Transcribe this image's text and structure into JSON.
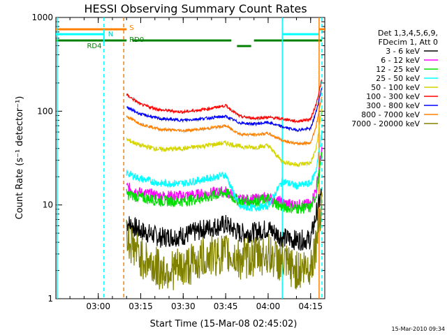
{
  "chart_data": {
    "type": "line",
    "title": "HESSI Observing Summary Count Rates",
    "xlabel": "Start Time (15-Mar-08 02:45:02)",
    "ylabel": "Count Rate (s⁻¹ detector⁻¹)",
    "y_scale": "log",
    "ylim": [
      1,
      1000
    ],
    "xlim": [
      "02:45:02",
      "04:20:00"
    ],
    "x_ticks": [
      "03:00",
      "03:15",
      "03:30",
      "03:45",
      "04:00",
      "04:15"
    ],
    "y_ticks": [
      "1",
      "10",
      "100",
      "1000"
    ],
    "legend": {
      "position": "right",
      "header": [
        "Det 1,3,4,5,6,9,",
        "FDecim 1, Att 0"
      ],
      "entries": [
        {
          "label": "3 - 6 keV",
          "color": "#000000"
        },
        {
          "label": "6 - 12 keV",
          "color": "#ff00ff"
        },
        {
          "label": "12 - 25 keV",
          "color": "#00e000"
        },
        {
          "label": "25 - 50 keV",
          "color": "#00ffff"
        },
        {
          "label": "50 - 100 keV",
          "color": "#d4d400"
        },
        {
          "label": "100 - 300 keV",
          "color": "#ff0000"
        },
        {
          "label": "300 - 800 keV",
          "color": "#0000ff"
        },
        {
          "label": "800 - 7000 keV",
          "color": "#ff8000"
        },
        {
          "label": "7000 - 20000 keV",
          "color": "#808000"
        }
      ]
    },
    "annotations": {
      "saa_label": "S",
      "night_label": "N",
      "rd4_label": "RD4",
      "rd0_label": "RD0"
    },
    "series": [
      {
        "name": "3 - 6 keV",
        "color": "#000000",
        "x": [
          "03:10",
          "03:15",
          "03:22",
          "03:30",
          "03:38",
          "03:45",
          "03:50",
          "03:55",
          "04:00",
          "04:05",
          "04:10",
          "04:15",
          "04:17",
          "04:19"
        ],
        "y": [
          6.5,
          5.3,
          4.5,
          4.7,
          5.6,
          6.2,
          5.0,
          5.1,
          5.6,
          4.5,
          4.2,
          4.3,
          8,
          14
        ]
      },
      {
        "name": "6 - 12 keV",
        "color": "#ff00ff",
        "x": [
          "03:10",
          "03:15",
          "03:22",
          "03:30",
          "03:38",
          "03:45",
          "03:50",
          "03:55",
          "04:00",
          "04:05",
          "04:10",
          "04:15",
          "04:17",
          "04:19"
        ],
        "y": [
          15.5,
          13.5,
          12.5,
          12.5,
          13.2,
          14,
          11.3,
          11.5,
          12,
          10.5,
          10,
          10.2,
          15,
          40
        ]
      },
      {
        "name": "12 - 25 keV",
        "color": "#00e000",
        "x": [
          "03:10",
          "03:15",
          "03:22",
          "03:30",
          "03:38",
          "03:45",
          "03:50",
          "03:55",
          "04:00",
          "04:05",
          "04:10",
          "04:15",
          "04:17",
          "04:19"
        ],
        "y": [
          13,
          12,
          11,
          11,
          12,
          13.5,
          10.8,
          11,
          11.5,
          9.5,
          9.2,
          9.3,
          13,
          35
        ]
      },
      {
        "name": "25 - 50 keV",
        "color": "#00ffff",
        "x": [
          "03:10",
          "03:15",
          "03:22",
          "03:30",
          "03:38",
          "03:45",
          "03:50",
          "03:55",
          "04:00",
          "04:05",
          "04:10",
          "04:15",
          "04:17",
          "04:19"
        ],
        "y": [
          22,
          19,
          17,
          17,
          19,
          21,
          9.5,
          9.3,
          9.8,
          18,
          16,
          17,
          24,
          60
        ]
      },
      {
        "name": "50 - 100 keV",
        "color": "#d4d400",
        "x": [
          "03:10",
          "03:15",
          "03:22",
          "03:30",
          "03:38",
          "03:45",
          "03:50",
          "03:55",
          "04:00",
          "04:05",
          "04:10",
          "04:15",
          "04:17",
          "04:19"
        ],
        "y": [
          50,
          43,
          39,
          40,
          43,
          46,
          42,
          41,
          43,
          29,
          27,
          28,
          40,
          110
        ]
      },
      {
        "name": "100 - 300 keV",
        "color": "#ff0000",
        "x": [
          "03:10",
          "03:15",
          "03:22",
          "03:30",
          "03:38",
          "03:45",
          "03:50",
          "03:55",
          "04:00",
          "04:05",
          "04:10",
          "04:15",
          "04:17",
          "04:19"
        ],
        "y": [
          150,
          118,
          103,
          98,
          105,
          115,
          88,
          84,
          86,
          83,
          78,
          82,
          120,
          220
        ]
      },
      {
        "name": "300 - 800 keV",
        "color": "#0000ff",
        "x": [
          "03:10",
          "03:15",
          "03:22",
          "03:30",
          "03:38",
          "03:45",
          "03:50",
          "03:55",
          "04:00",
          "04:05",
          "04:10",
          "04:15",
          "04:17",
          "04:19"
        ],
        "y": [
          110,
          93,
          83,
          80,
          84,
          88,
          75,
          73,
          76,
          68,
          63,
          65,
          100,
          180
        ]
      },
      {
        "name": "800 - 7000 keV",
        "color": "#ff8000",
        "x": [
          "03:10",
          "03:15",
          "03:22",
          "03:30",
          "03:38",
          "03:45",
          "03:50",
          "03:55",
          "04:00",
          "04:05",
          "04:10",
          "04:15",
          "04:17",
          "04:19"
        ],
        "y": [
          88,
          73,
          64,
          62,
          65,
          70,
          57,
          56,
          58,
          49,
          45,
          46,
          70,
          150
        ]
      },
      {
        "name": "7000 - 20000 keV",
        "color": "#808000",
        "x": [
          "03:10",
          "03:15",
          "03:22",
          "03:30",
          "03:38",
          "03:45",
          "03:50",
          "03:55",
          "04:00",
          "04:05",
          "04:10",
          "04:15",
          "04:17",
          "04:19"
        ],
        "y": [
          4.5,
          2.8,
          2.0,
          2.1,
          2.8,
          3.0,
          2.6,
          2.8,
          3.0,
          2.4,
          2.0,
          2.2,
          4,
          12
        ]
      }
    ],
    "flag_bars": {
      "saa": {
        "color": "#ff8000",
        "segments": [
          [
            "02:45:02",
            "03:10"
          ],
          [
            "04:18",
            "04:20"
          ]
        ]
      },
      "night": {
        "color": "#00ffff",
        "segments": [
          [
            "02:45:02",
            "03:02"
          ],
          [
            "04:05",
            "04:18"
          ]
        ]
      },
      "decimation": {
        "color": "#008000",
        "segments": [
          [
            "02:45:02",
            "03:10"
          ],
          [
            "03:12",
            "03:47"
          ],
          [
            "03:49",
            "03:54"
          ],
          [
            "03:55",
            "04:19"
          ]
        ]
      }
    },
    "vertical_markers": [
      {
        "x": "02:45:30",
        "color": "#00ffff",
        "style": "solid"
      },
      {
        "x": "03:02",
        "color": "#00ffff",
        "style": "dashed"
      },
      {
        "x": "03:09",
        "color": "#ff8000",
        "style": "dashed"
      },
      {
        "x": "04:05",
        "color": "#00ffff",
        "style": "solid"
      },
      {
        "x": "04:18",
        "color": "#ff8000",
        "style": "solid"
      },
      {
        "x": "04:19",
        "color": "#00ffff",
        "style": "dashed"
      }
    ]
  },
  "footer": {
    "timestamp": "15-Mar-2010 09:34"
  }
}
